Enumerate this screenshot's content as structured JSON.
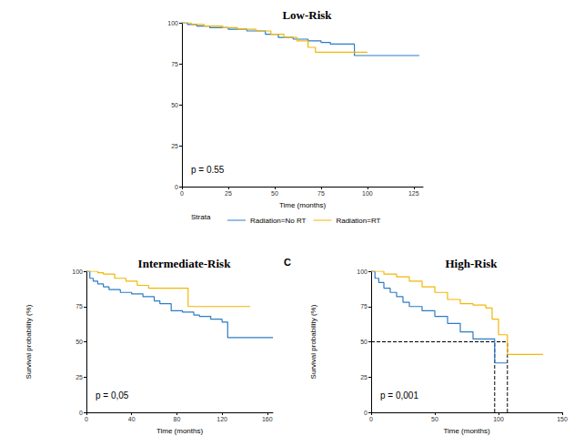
{
  "chart_data": [
    {
      "type": "line",
      "title": "Low-Risk",
      "x_label": "Time (months)",
      "annotation": "p = 0.55",
      "xlim": [
        0,
        130
      ],
      "xticks": [
        0,
        25,
        50,
        75,
        100,
        125
      ],
      "ylim": [
        0,
        100
      ],
      "yticks": [
        0,
        25,
        50,
        75,
        100
      ],
      "grid": false,
      "legend": "bottom",
      "legend_title": "Strata",
      "series": [
        {
          "name": "Radiation=No RT",
          "color": "#2b7cc7",
          "x": [
            0,
            3,
            8,
            15,
            25,
            35,
            45,
            52,
            60,
            68,
            75,
            80,
            93,
            128
          ],
          "values": [
            100,
            99,
            98,
            97,
            96,
            95,
            93,
            91,
            90,
            89,
            88,
            87,
            80,
            80
          ]
        },
        {
          "name": "Radiation=RT",
          "color": "#f2b705",
          "x": [
            0,
            5,
            12,
            22,
            30,
            40,
            48,
            55,
            62,
            68,
            72,
            100
          ],
          "values": [
            100,
            99,
            98,
            97,
            96,
            95,
            93,
            91,
            89,
            85,
            82,
            82
          ]
        }
      ]
    },
    {
      "type": "line",
      "title": "Intermediate-Risk",
      "x_label": "Time (months)",
      "y_label": "Survival probability (%)",
      "annotation": "p = 0,05",
      "xlim": [
        0,
        165
      ],
      "xticks": [
        0,
        40,
        80,
        120,
        160
      ],
      "ylim": [
        0,
        100
      ],
      "yticks": [
        0,
        25,
        50,
        75,
        100
      ],
      "grid": false,
      "series": [
        {
          "name": "Radiation=No RT",
          "color": "#2b7cc7",
          "x": [
            0,
            3,
            6,
            10,
            15,
            20,
            30,
            40,
            50,
            60,
            65,
            75,
            85,
            95,
            100,
            110,
            120,
            125,
            165
          ],
          "values": [
            100,
            95,
            93,
            91,
            89,
            87,
            85,
            84,
            82,
            79,
            77,
            72,
            71,
            69,
            68,
            66,
            64,
            53,
            53
          ]
        },
        {
          "name": "Radiation=RT",
          "color": "#f2b705",
          "x": [
            0,
            10,
            15,
            25,
            35,
            45,
            55,
            88,
            90,
            145
          ],
          "values": [
            100,
            99,
            98,
            95,
            93,
            90,
            88,
            88,
            75,
            75
          ]
        }
      ]
    },
    {
      "type": "line",
      "title": "High-Risk",
      "panel_label": "C",
      "x_label": "Time (months)",
      "y_label": "Survival probability (%)",
      "annotation": "p = 0,001",
      "xlim": [
        0,
        150
      ],
      "xticks": [
        0,
        50,
        100,
        150
      ],
      "ylim": [
        0,
        100
      ],
      "yticks": [
        0,
        25,
        50,
        75,
        100
      ],
      "grid": false,
      "median_lines": {
        "y": 50,
        "x": [
          97,
          107
        ]
      },
      "series": [
        {
          "name": "Radiation=No RT",
          "color": "#2b7cc7",
          "x": [
            0,
            3,
            6,
            10,
            15,
            20,
            25,
            30,
            40,
            50,
            60,
            70,
            80,
            97,
            107
          ],
          "values": [
            100,
            95,
            92,
            88,
            85,
            82,
            78,
            75,
            72,
            68,
            63,
            57,
            52,
            35,
            35
          ]
        },
        {
          "name": "Radiation=RT",
          "color": "#f2b705",
          "x": [
            0,
            10,
            20,
            30,
            40,
            50,
            60,
            70,
            80,
            90,
            95,
            100,
            107,
            135
          ],
          "values": [
            100,
            98,
            96,
            93,
            89,
            85,
            80,
            77,
            76,
            74,
            66,
            55,
            41,
            41
          ]
        }
      ]
    }
  ]
}
